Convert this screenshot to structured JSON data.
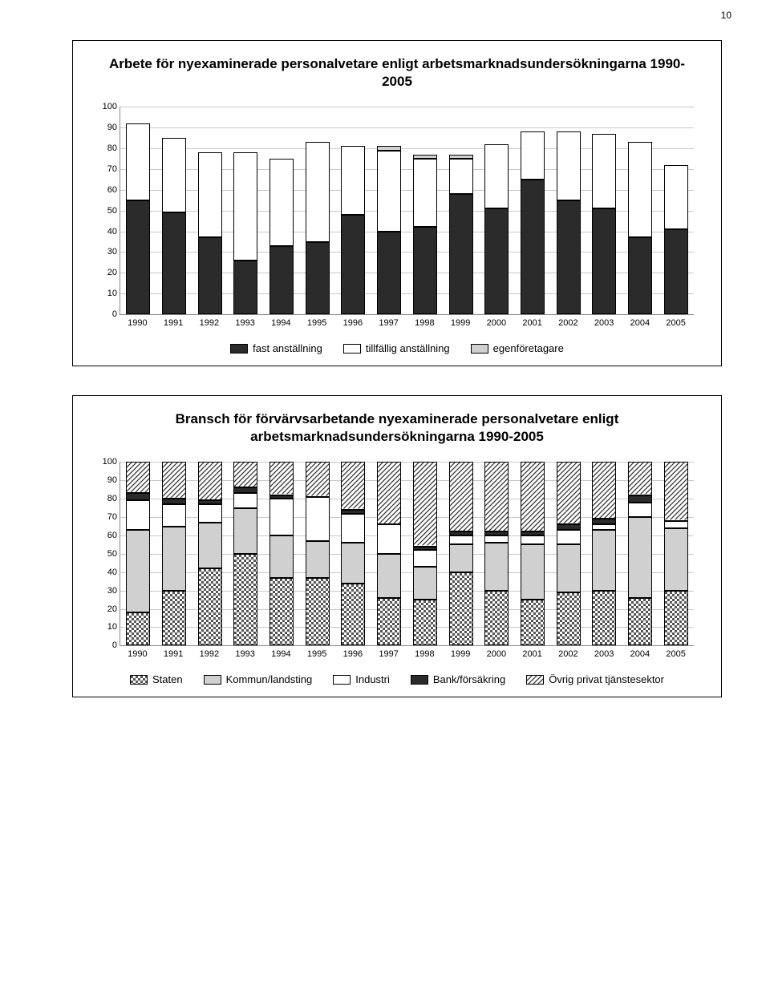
{
  "page_number": "10",
  "colors": {
    "solid_dark": "#2b2b2b",
    "white": "#ffffff",
    "light_gray": "#d0d0d0",
    "gridline": "#c8c8c8",
    "axis": "#888888",
    "border": "#000000"
  },
  "chart1": {
    "title": "Arbete för nyexaminerade personalvetare enligt arbetsmarknadsundersökningarna 1990-2005",
    "type": "stacked-bar",
    "ylim": [
      0,
      100
    ],
    "ytick_step": 10,
    "categories": [
      "1990",
      "1991",
      "1992",
      "1993",
      "1994",
      "1995",
      "1996",
      "1997",
      "1998",
      "1999",
      "2000",
      "2001",
      "2002",
      "2003",
      "2004",
      "2005"
    ],
    "series": [
      {
        "name": "fast anställning",
        "fill": "solid",
        "color": "#2b2b2b"
      },
      {
        "name": "tillfällig anställning",
        "fill": "solid",
        "color": "#ffffff"
      },
      {
        "name": "egenföretagare",
        "fill": "solid",
        "color": "#d0d0d0"
      }
    ],
    "data": [
      [
        55,
        37,
        0
      ],
      [
        49,
        36,
        0
      ],
      [
        37,
        41,
        0
      ],
      [
        26,
        52,
        0
      ],
      [
        33,
        42,
        0
      ],
      [
        35,
        48,
        0
      ],
      [
        48,
        33,
        0
      ],
      [
        40,
        39,
        2
      ],
      [
        42,
        33,
        2
      ],
      [
        58,
        17,
        2
      ],
      [
        51,
        31,
        0
      ],
      [
        65,
        23,
        0
      ],
      [
        55,
        33,
        0
      ],
      [
        51,
        36,
        0
      ],
      [
        37,
        46,
        0
      ],
      [
        41,
        31,
        0
      ]
    ]
  },
  "chart2": {
    "title": "Bransch för förvärvsarbetande nyexaminerade personalvetare enligt arbetsmarknadsundersökningarna 1990-2005",
    "type": "stacked-bar",
    "ylim": [
      0,
      100
    ],
    "ytick_step": 10,
    "categories": [
      "1990",
      "1991",
      "1992",
      "1993",
      "1994",
      "1995",
      "1996",
      "1997",
      "1998",
      "1999",
      "2000",
      "2001",
      "2002",
      "2003",
      "2004",
      "2005"
    ],
    "series": [
      {
        "name": "Staten",
        "fill": "checker",
        "color": "#ffffff"
      },
      {
        "name": "Kommun/landsting",
        "fill": "solid",
        "color": "#d0d0d0"
      },
      {
        "name": "Industri",
        "fill": "solid",
        "color": "#ffffff"
      },
      {
        "name": "Bank/försäkring",
        "fill": "solid",
        "color": "#2b2b2b"
      },
      {
        "name": "Övrig privat tjänstesektor",
        "fill": "diag",
        "color": "#ffffff"
      }
    ],
    "data": [
      [
        18,
        45,
        16,
        4,
        17
      ],
      [
        30,
        35,
        12,
        3,
        20
      ],
      [
        42,
        25,
        10,
        2,
        21
      ],
      [
        50,
        25,
        8,
        3,
        14
      ],
      [
        37,
        23,
        20,
        2,
        18
      ],
      [
        37,
        20,
        24,
        0,
        19
      ],
      [
        34,
        22,
        16,
        2,
        26
      ],
      [
        26,
        24,
        16,
        0,
        34
      ],
      [
        25,
        18,
        9,
        2,
        46
      ],
      [
        40,
        15,
        5,
        2,
        38
      ],
      [
        30,
        26,
        4,
        2,
        38
      ],
      [
        25,
        30,
        5,
        2,
        38
      ],
      [
        29,
        26,
        8,
        3,
        34
      ],
      [
        30,
        33,
        3,
        3,
        31
      ],
      [
        26,
        44,
        8,
        4,
        18
      ],
      [
        30,
        34,
        4,
        0,
        32
      ]
    ]
  }
}
